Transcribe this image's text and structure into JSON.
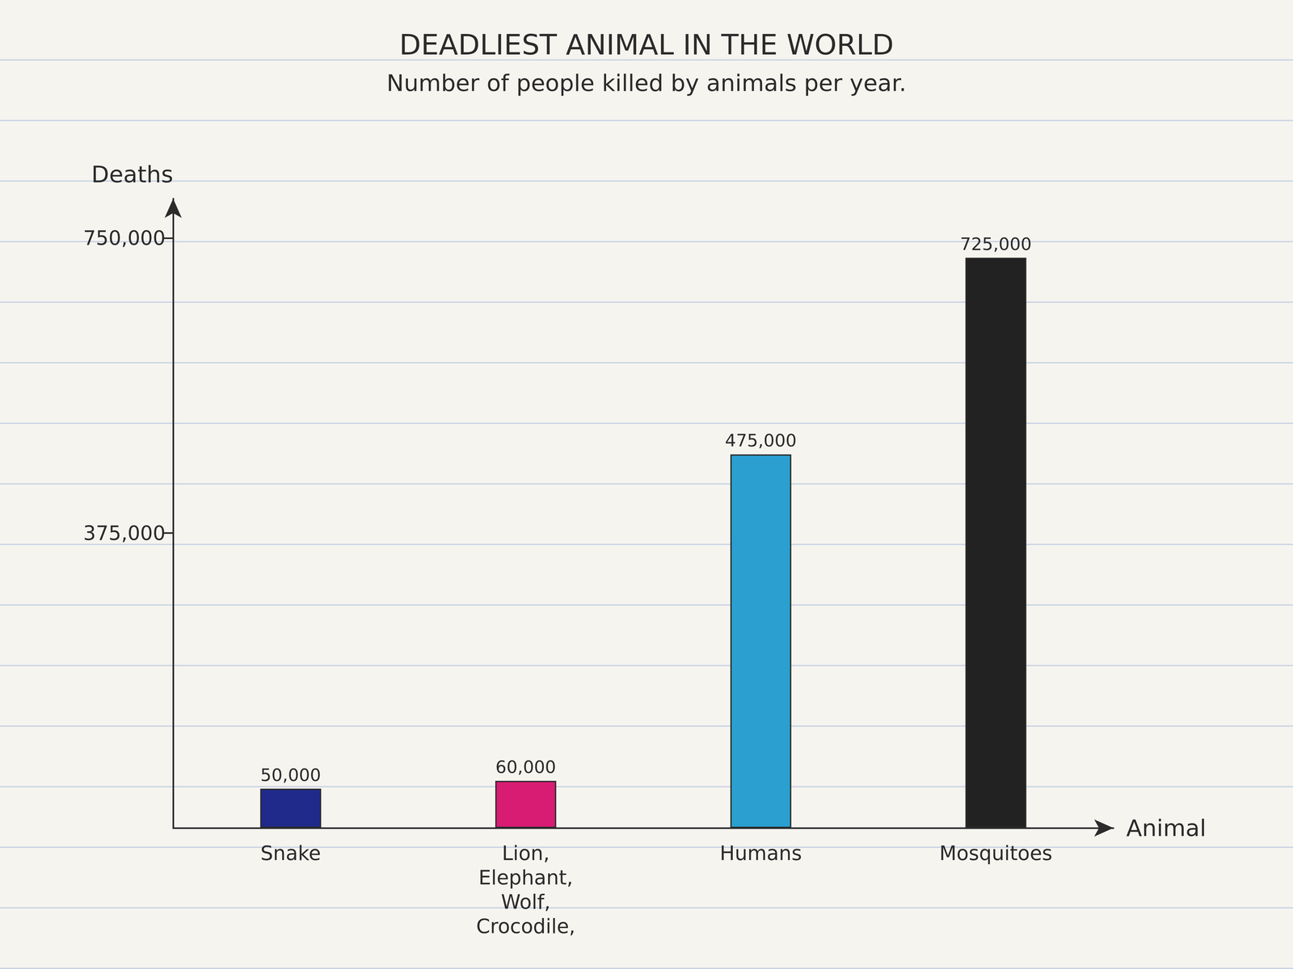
{
  "chart_data": {
    "type": "bar",
    "title": "DEADLIEST ANIMAL IN THE WORLD",
    "subtitle": "Number of people killed by animals per year.",
    "xlabel": "Animal",
    "ylabel": "Deaths",
    "categories": [
      "Snake",
      "Lion,\nElephant,\nWolf,\nCrocodile,",
      "Humans",
      "Mosquitoes"
    ],
    "values": [
      50000,
      60000,
      475000,
      725000
    ],
    "value_labels": [
      "50,000",
      "60,000",
      "475,000",
      "725,000"
    ],
    "colors": [
      "#1f2a8a",
      "#d81b73",
      "#2a9fd0",
      "#222222"
    ],
    "ylim": [
      0,
      800000
    ],
    "yticks": [
      {
        "value": 375000,
        "label": "375,000"
      },
      {
        "value": 750000,
        "label": "750,000"
      }
    ],
    "grid": false,
    "data_labels": true
  }
}
